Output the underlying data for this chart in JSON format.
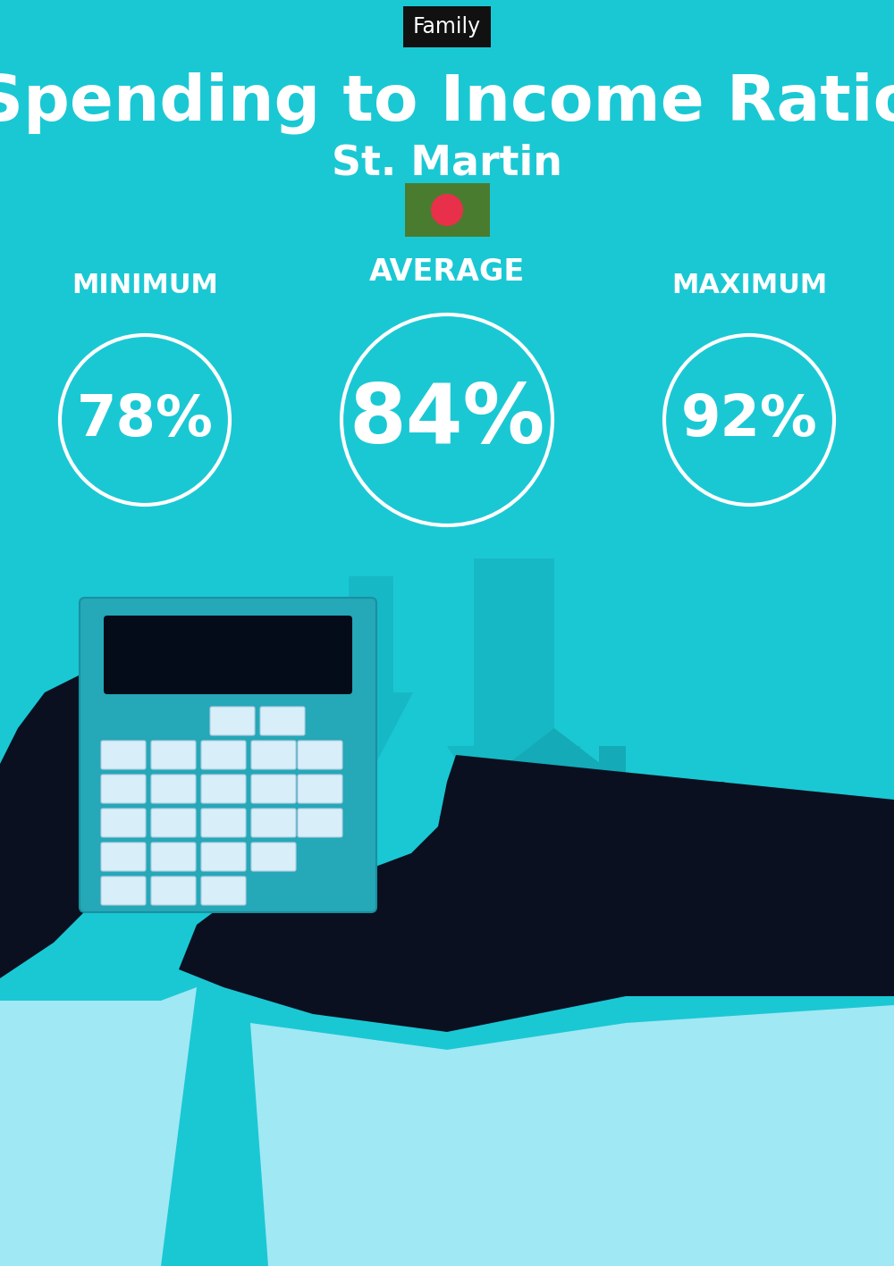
{
  "bg_color": "#1ac8d4",
  "title_label": "Family",
  "title_bg": "#111111",
  "title_fg": "#ffffff",
  "main_title": "Spending to Income Ratio",
  "subtitle": "St. Martin",
  "label_min": "MINIMUM",
  "label_avg": "AVERAGE",
  "label_max": "MAXIMUM",
  "val_min": "78%",
  "val_avg": "84%",
  "val_max": "92%",
  "circle_color": "#ffffff",
  "text_color": "#ffffff",
  "flag_green": "#4a7c2f",
  "flag_red": "#e8304a",
  "fig_width": 10.0,
  "fig_height": 14.17,
  "dpi": 100
}
